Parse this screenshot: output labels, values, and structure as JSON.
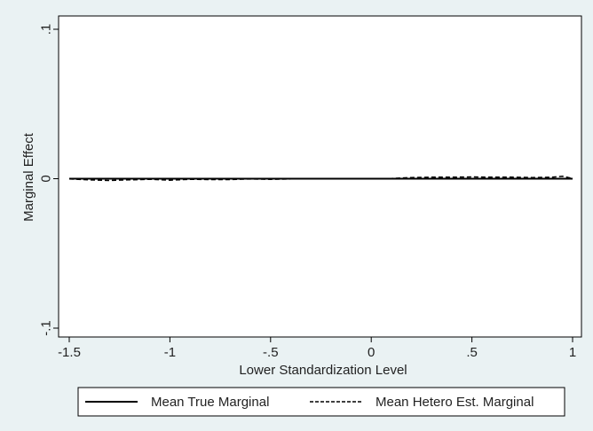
{
  "chart_data": {
    "type": "line",
    "xlabel": "Lower Standardization Level",
    "ylabel": "Marginal Effect",
    "xlim": [
      -1.5,
      1
    ],
    "ylim": [
      -0.1,
      0.1
    ],
    "x_ticks": [
      {
        "value": -1.5,
        "label": "-1.5"
      },
      {
        "value": -1,
        "label": "-1"
      },
      {
        "value": -0.5,
        "label": "-.5"
      },
      {
        "value": 0,
        "label": "0"
      },
      {
        "value": 0.5,
        "label": ".5"
      },
      {
        "value": 1,
        "label": "1"
      }
    ],
    "y_ticks": [
      {
        "value": -0.1,
        "label": "-.1"
      },
      {
        "value": 0,
        "label": "0"
      },
      {
        "value": 0.1,
        "label": ".1"
      }
    ],
    "grid": false,
    "legend_position": "bottom",
    "series": [
      {
        "name": "Mean True Marginal",
        "style": "solid",
        "color": "#000000",
        "x": [
          -1.5,
          -1.25,
          -1.0,
          -0.75,
          -0.5,
          -0.25,
          0.0,
          0.25,
          0.5,
          0.75,
          1.0
        ],
        "y": [
          0,
          0,
          0,
          0,
          0,
          0,
          0,
          0,
          0,
          0,
          0
        ]
      },
      {
        "name": "Mean Hetero Est. Marginal",
        "style": "dashed",
        "color": "#000000",
        "x": [
          -1.5,
          -1.4,
          -1.3,
          -1.2,
          -1.1,
          -1.0,
          -0.9,
          -0.8,
          -0.7,
          -0.6,
          -0.5,
          -0.4,
          -0.3,
          -0.2,
          -0.1,
          0.0,
          0.1,
          0.2,
          0.3,
          0.4,
          0.5,
          0.6,
          0.7,
          0.8,
          0.9,
          0.95,
          1.0
        ],
        "y": [
          -0.0002,
          -0.0008,
          -0.0012,
          -0.0008,
          -0.0004,
          -0.001,
          -0.0004,
          -0.0006,
          -0.0006,
          -0.0002,
          -0.0004,
          -0.0002,
          -0.0001,
          0.0,
          0.0,
          0.0,
          0.0002,
          0.0008,
          0.001,
          0.001,
          0.0012,
          0.001,
          0.001,
          0.0008,
          0.001,
          0.0016,
          0.0002
        ]
      }
    ]
  }
}
